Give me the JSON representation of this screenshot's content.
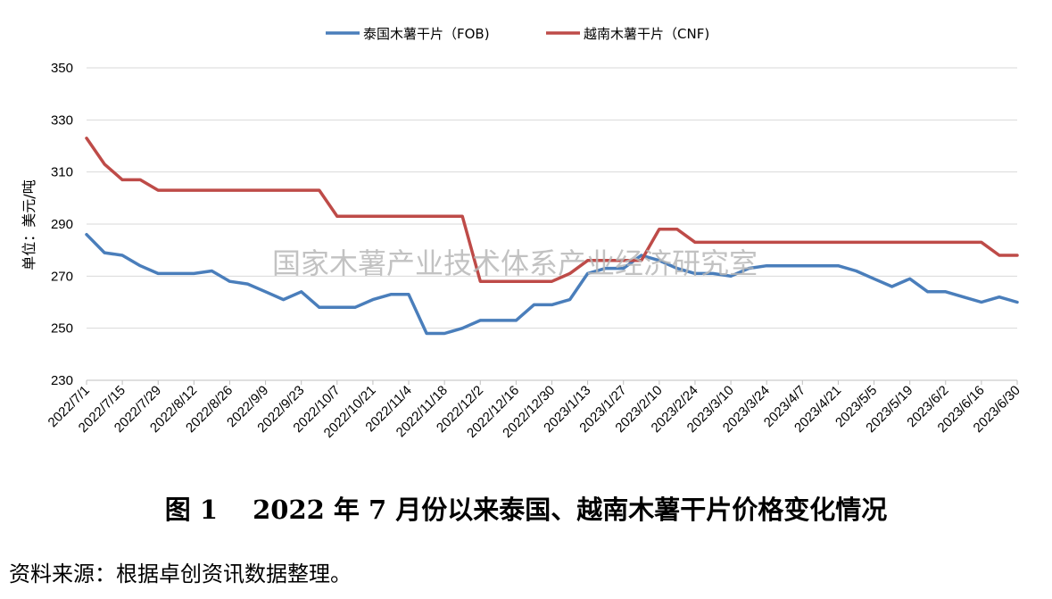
{
  "watermark": "国家木薯产业技术体系产业经济研究室",
  "caption": "图 1　 2022 年 7 月份以来泰国、越南木薯干片价格变化情况",
  "source_note": "资料来源：根据卓创资讯数据整理。",
  "chart_data": {
    "type": "line",
    "title": "",
    "ylabel": "单位：美元/吨",
    "xlabel": "",
    "ylim": [
      230,
      350
    ],
    "yticks": [
      230,
      250,
      270,
      290,
      310,
      330,
      350
    ],
    "grid": "horizontal",
    "legend_position": "top",
    "x_tick_labels": [
      "2022/7/1",
      "2022/7/15",
      "2022/7/29",
      "2022/8/12",
      "2022/8/26",
      "2022/9/9",
      "2022/9/23",
      "2022/10/7",
      "2022/10/21",
      "2022/11/4",
      "2022/11/18",
      "2022/12/2",
      "2022/12/16",
      "2022/12/30",
      "2023/1/13",
      "2023/1/27",
      "2023/2/10",
      "2023/2/24",
      "2023/3/10",
      "2023/3/24",
      "2023/4/7",
      "2023/4/21",
      "2023/5/5",
      "2023/5/19",
      "2023/6/2",
      "2023/6/16",
      "2023/6/30"
    ],
    "x": [
      "2022/7/1",
      "2022/7/8",
      "2022/7/15",
      "2022/7/22",
      "2022/7/29",
      "2022/8/5",
      "2022/8/12",
      "2022/8/19",
      "2022/8/26",
      "2022/9/2",
      "2022/9/9",
      "2022/9/16",
      "2022/9/23",
      "2022/9/30",
      "2022/10/7",
      "2022/10/14",
      "2022/10/21",
      "2022/10/28",
      "2022/11/4",
      "2022/11/11",
      "2022/11/18",
      "2022/11/25",
      "2022/12/2",
      "2022/12/9",
      "2022/12/16",
      "2022/12/23",
      "2022/12/30",
      "2023/1/6",
      "2023/1/13",
      "2023/1/20",
      "2023/1/27",
      "2023/2/3",
      "2023/2/10",
      "2023/2/17",
      "2023/2/24",
      "2023/3/3",
      "2023/3/10",
      "2023/3/17",
      "2023/3/24",
      "2023/3/31",
      "2023/4/7",
      "2023/4/14",
      "2023/4/21",
      "2023/4/28",
      "2023/5/5",
      "2023/5/12",
      "2023/5/19",
      "2023/5/26",
      "2023/6/2",
      "2023/6/9",
      "2023/6/16",
      "2023/6/23",
      "2023/6/30"
    ],
    "series": [
      {
        "name": "泰国木薯干片（FOB)",
        "color": "#4a7ebb",
        "values": [
          286,
          279,
          278,
          274,
          271,
          271,
          271,
          272,
          268,
          267,
          264,
          261,
          264,
          258,
          258,
          258,
          261,
          263,
          263,
          248,
          248,
          250,
          253,
          253,
          253,
          259,
          259,
          261,
          271,
          273,
          273,
          278,
          276,
          273,
          271,
          271,
          270,
          273,
          274,
          274,
          274,
          274,
          274,
          272,
          269,
          266,
          269,
          264,
          264,
          262,
          260,
          262,
          260
        ]
      },
      {
        "name": "越南木薯干片（CNF)",
        "color": "#be4b48",
        "values": [
          323,
          313,
          307,
          307,
          303,
          303,
          303,
          303,
          303,
          303,
          303,
          303,
          303,
          303,
          293,
          293,
          293,
          293,
          293,
          293,
          293,
          293,
          268,
          268,
          268,
          268,
          268,
          271,
          276,
          276,
          276,
          276,
          288,
          288,
          283,
          283,
          283,
          283,
          283,
          283,
          283,
          283,
          283,
          283,
          283,
          283,
          283,
          283,
          283,
          283,
          283,
          278,
          278
        ]
      }
    ]
  }
}
